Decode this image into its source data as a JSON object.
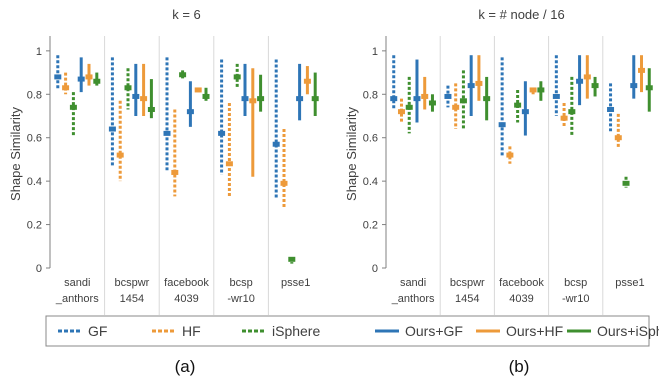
{
  "figure": {
    "panel_labels": [
      "(a)",
      "(b)"
    ]
  },
  "colors": {
    "GF": "#2e75b6",
    "HF": "#ed9a3a",
    "iSphere": "#3f8f2f",
    "Ours+GF": "#2e75b6",
    "Ours+HF": "#ed9a3a",
    "Ours+iSphere": "#3f8f2f"
  },
  "legend": {
    "entries": [
      {
        "name": "GF",
        "style": "dashed"
      },
      {
        "name": "HF",
        "style": "dashed"
      },
      {
        "name": "iSphere",
        "style": "dashed"
      },
      {
        "name": "Ours+GF",
        "style": "solid"
      },
      {
        "name": "Ours+HF",
        "style": "solid"
      },
      {
        "name": "Ours+iSphere",
        "style": "solid"
      }
    ]
  },
  "chart_data": [
    {
      "type": "range",
      "title": "k = 6",
      "ylabel": "Shape Similarity",
      "ylim": [
        0,
        1.05
      ],
      "yticks": [
        0,
        0.2,
        0.4,
        0.6,
        0.8,
        1
      ],
      "categories": [
        [
          "sandi",
          "_anthors"
        ],
        [
          "bcspwr",
          "1454"
        ],
        [
          "facebook",
          "4039"
        ],
        [
          "bcsp",
          "-wr10"
        ],
        [
          "psse1"
        ]
      ],
      "series": [
        {
          "name": "GF",
          "ranges": [
            [
              0.82,
              0.98
            ],
            [
              0.47,
              0.97
            ],
            [
              0.45,
              0.97
            ],
            [
              0.43,
              0.96
            ],
            [
              0.32,
              0.96
            ]
          ],
          "medians": [
            0.88,
            0.64,
            0.62,
            0.62,
            0.57
          ]
        },
        {
          "name": "HF",
          "ranges": [
            [
              0.8,
              0.9
            ],
            [
              0.4,
              0.77
            ],
            [
              0.33,
              0.73
            ],
            [
              0.33,
              0.76
            ],
            [
              0.28,
              0.64
            ]
          ],
          "medians": [
            0.83,
            0.52,
            0.44,
            0.48,
            0.39
          ]
        },
        {
          "name": "iSphere",
          "ranges": [
            [
              0.61,
              0.81
            ],
            [
              0.73,
              0.92
            ],
            [
              0.87,
              0.91
            ],
            [
              0.83,
              0.94
            ],
            [
              0.02,
              0.05
            ]
          ],
          "medians": [
            0.74,
            0.83,
            0.89,
            0.88,
            0.04
          ]
        },
        {
          "name": "Ours+GF",
          "ranges": [
            [
              0.81,
              0.97
            ],
            [
              0.7,
              0.94
            ],
            [
              0.65,
              0.86
            ],
            [
              0.7,
              0.94
            ],
            [
              0.68,
              0.94
            ]
          ],
          "medians": [
            0.87,
            0.79,
            0.72,
            0.78,
            0.78
          ]
        },
        {
          "name": "Ours+HF",
          "ranges": [
            [
              0.84,
              0.94
            ],
            [
              0.7,
              0.94
            ],
            [
              0.81,
              0.83
            ],
            [
              0.42,
              0.92
            ],
            [
              0.8,
              0.93
            ]
          ],
          "medians": [
            0.88,
            0.78,
            0.82,
            0.77,
            0.86
          ]
        },
        {
          "name": "Ours+iSphere",
          "ranges": [
            [
              0.84,
              0.9
            ],
            [
              0.69,
              0.87
            ],
            [
              0.77,
              0.83
            ],
            [
              0.72,
              0.89
            ],
            [
              0.7,
              0.9
            ]
          ],
          "medians": [
            0.86,
            0.73,
            0.79,
            0.78,
            0.78
          ]
        }
      ]
    },
    {
      "type": "range",
      "title": "k = # node / 16",
      "ylabel": "Shape Similarity",
      "ylim": [
        0,
        1.05
      ],
      "yticks": [
        0,
        0.2,
        0.4,
        0.6,
        0.8,
        1
      ],
      "categories": [
        [
          "sandi",
          "_anthors"
        ],
        [
          "bcspwr",
          "1454"
        ],
        [
          "facebook",
          "4039"
        ],
        [
          "bcsp",
          "-wr10"
        ],
        [
          "psse1"
        ]
      ],
      "series": [
        {
          "name": "GF",
          "ranges": [
            [
              0.73,
              0.98
            ],
            [
              0.74,
              0.84
            ],
            [
              0.51,
              0.97
            ],
            [
              0.7,
              0.98
            ],
            [
              0.63,
              0.85
            ]
          ],
          "medians": [
            0.78,
            0.79,
            0.66,
            0.79,
            0.73
          ]
        },
        {
          "name": "HF",
          "ranges": [
            [
              0.67,
              0.78
            ],
            [
              0.64,
              0.85
            ],
            [
              0.48,
              0.56
            ],
            [
              0.65,
              0.76
            ],
            [
              0.55,
              0.71
            ]
          ],
          "medians": [
            0.72,
            0.74,
            0.52,
            0.69,
            0.6
          ]
        },
        {
          "name": "iSphere",
          "ranges": [
            [
              0.62,
              0.88
            ],
            [
              0.64,
              0.91
            ],
            [
              0.67,
              0.82
            ],
            [
              0.61,
              0.88
            ],
            [
              0.37,
              0.42
            ]
          ],
          "medians": [
            0.74,
            0.77,
            0.75,
            0.72,
            0.39
          ]
        },
        {
          "name": "Ours+GF",
          "ranges": [
            [
              0.67,
              0.96
            ],
            [
              0.7,
              0.98
            ],
            [
              0.61,
              0.86
            ],
            [
              0.75,
              0.98
            ],
            [
              0.78,
              0.98
            ]
          ],
          "medians": [
            0.78,
            0.84,
            0.72,
            0.86,
            0.84
          ]
        },
        {
          "name": "Ours+HF",
          "ranges": [
            [
              0.73,
              0.88
            ],
            [
              0.77,
              0.98
            ],
            [
              0.8,
              0.83
            ],
            [
              0.78,
              0.98
            ],
            [
              0.81,
              0.98
            ]
          ],
          "medians": [
            0.79,
            0.85,
            0.82,
            0.88,
            0.91
          ]
        },
        {
          "name": "Ours+iSphere",
          "ranges": [
            [
              0.72,
              0.8
            ],
            [
              0.68,
              0.88
            ],
            [
              0.77,
              0.86
            ],
            [
              0.79,
              0.88
            ],
            [
              0.72,
              0.92
            ]
          ],
          "medians": [
            0.76,
            0.78,
            0.82,
            0.84,
            0.83
          ]
        }
      ]
    }
  ]
}
